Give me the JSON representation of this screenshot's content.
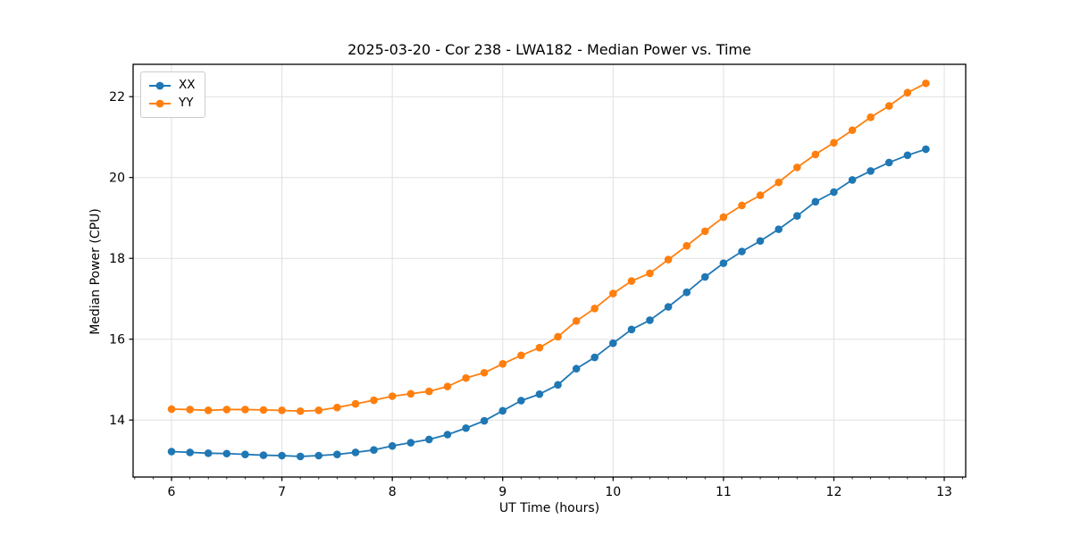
{
  "chart_data": {
    "type": "line",
    "title": "2025-03-20 - Cor 238 - LWA182 - Median Power vs. Time",
    "xlabel": "UT Time (hours)",
    "ylabel": "Median Power (CPU)",
    "xlim": [
      5.652,
      13.194
    ],
    "ylim": [
      12.59,
      22.8
    ],
    "xticks": [
      6,
      7,
      8,
      9,
      10,
      11,
      12,
      13
    ],
    "yticks": [
      14,
      16,
      18,
      20,
      22
    ],
    "x_minor_step": 0.1666667,
    "grid": true,
    "legend_position": "upper left",
    "colors": {
      "grid": "#e0e0e0",
      "spine": "#000000",
      "tick": "#000000",
      "background": "#ffffff"
    },
    "x": [
      6.0,
      6.167,
      6.333,
      6.5,
      6.667,
      6.833,
      7.0,
      7.167,
      7.333,
      7.5,
      7.667,
      7.833,
      8.0,
      8.167,
      8.333,
      8.5,
      8.667,
      8.833,
      9.0,
      9.167,
      9.333,
      9.5,
      9.667,
      9.833,
      10.0,
      10.167,
      10.333,
      10.5,
      10.667,
      10.833,
      11.0,
      11.167,
      11.333,
      11.5,
      11.667,
      11.833,
      12.0,
      12.167,
      12.333,
      12.5,
      12.667,
      12.833
    ],
    "series": [
      {
        "name": "XX",
        "color": "#1f77b4",
        "values": [
          13.22,
          13.2,
          13.18,
          13.17,
          13.15,
          13.13,
          13.12,
          13.1,
          13.12,
          13.15,
          13.2,
          13.26,
          13.36,
          13.44,
          13.52,
          13.64,
          13.8,
          13.98,
          14.23,
          14.48,
          14.64,
          14.87,
          15.27,
          15.55,
          15.9,
          16.24,
          16.47,
          16.8,
          17.16,
          17.54,
          17.88,
          18.17,
          18.43,
          18.72,
          19.05,
          19.4,
          19.64,
          19.94,
          20.16,
          20.37,
          20.55,
          20.7
        ]
      },
      {
        "name": "YY",
        "color": "#ff7f0e",
        "values": [
          14.27,
          14.26,
          14.24,
          14.26,
          14.26,
          14.25,
          14.24,
          14.22,
          14.24,
          14.31,
          14.4,
          14.49,
          14.59,
          14.65,
          14.71,
          14.83,
          15.04,
          15.17,
          15.39,
          15.6,
          15.79,
          16.06,
          16.45,
          16.76,
          17.13,
          17.44,
          17.63,
          17.97,
          18.31,
          18.67,
          19.02,
          19.31,
          19.56,
          19.88,
          20.25,
          20.57,
          20.86,
          21.17,
          21.49,
          21.77,
          22.1,
          22.33
        ]
      }
    ]
  }
}
